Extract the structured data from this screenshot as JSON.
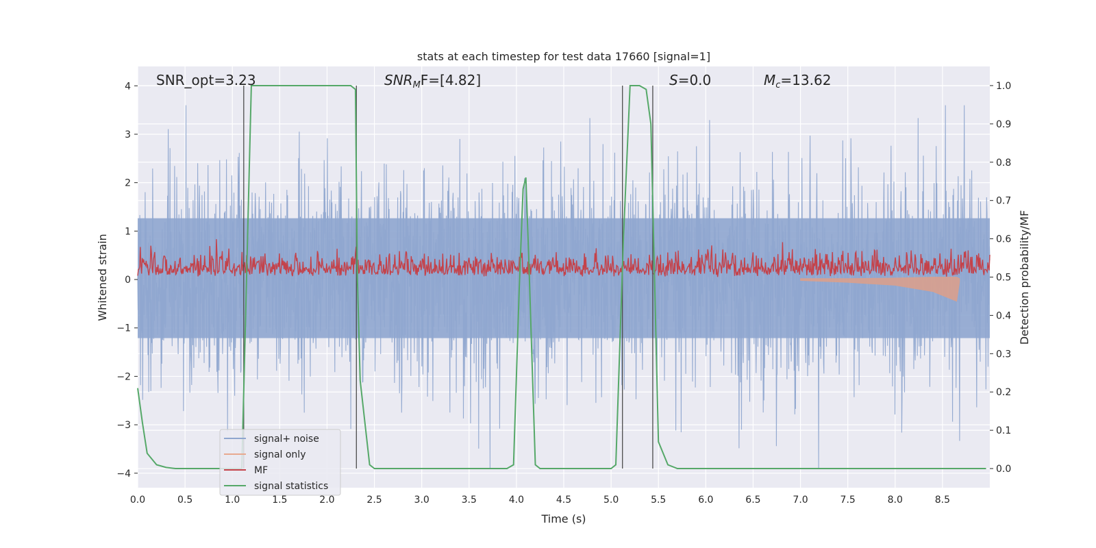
{
  "chart_data": {
    "type": "line",
    "title": "stats at each timestep for test data 17660 [signal=1]",
    "xlabel": "Time (s)",
    "ylabel_left": "Whitened strain",
    "ylabel_right": "Detection probability/MF",
    "xlim": [
      0.0,
      9.0
    ],
    "ylim_left": [
      -4.3,
      4.4
    ],
    "ylim_right": [
      -0.05,
      1.05
    ],
    "x_ticks": [
      "0.0",
      "0.5",
      "1.0",
      "1.5",
      "2.0",
      "2.5",
      "3.0",
      "3.5",
      "4.0",
      "4.5",
      "5.0",
      "5.5",
      "6.0",
      "6.5",
      "7.0",
      "7.5",
      "8.0",
      "8.5"
    ],
    "y_ticks_left": [
      "4",
      "3",
      "2",
      "1",
      "0",
      "−1",
      "−2",
      "−3",
      "−4"
    ],
    "y_ticks_right": [
      "1.0",
      "0.9",
      "0.8",
      "0.7",
      "0.6",
      "0.5",
      "0.4",
      "0.3",
      "0.2",
      "0.1",
      "0.0"
    ],
    "grid": true,
    "legend_position": "lower-left",
    "annotations": {
      "snr_opt": "SNR_opt=3.23",
      "snr_mf_base": "SNR",
      "snr_mf_sub": "M",
      "snr_mf_rest": "F=[4.82]",
      "s_base": "S",
      "s_rest": "=0.0",
      "mc_base": "M",
      "mc_sub": "c",
      "mc_rest": "=13.62"
    },
    "series": [
      {
        "name": "signal+ noise",
        "color": "#8fa6cf",
        "axis": "left",
        "envelope_typical": [
          -2.2,
          2.3
        ],
        "envelope_extreme": [
          -3.9,
          3.6
        ]
      },
      {
        "name": "signal only",
        "color": "#d9a08d",
        "axis": "left",
        "x": [
          7.0,
          7.5,
          8.0,
          8.4,
          8.65,
          8.68
        ],
        "y_low": [
          -0.02,
          -0.06,
          -0.12,
          -0.25,
          -0.45,
          -0.05
        ],
        "y_high": [
          0.02,
          0.02,
          0.03,
          0.05,
          0.05,
          0.02
        ]
      },
      {
        "name": "MF",
        "color": "#c4424a",
        "axis": "right",
        "baseline": 0.5,
        "typical_peak": 0.56,
        "max_peak": 0.6
      },
      {
        "name": "signal statistics",
        "color": "#55a868",
        "axis": "right",
        "x": [
          0.0,
          0.05,
          0.1,
          0.2,
          0.3,
          0.4,
          1.0,
          1.1,
          1.13,
          1.2,
          1.3,
          2.25,
          2.3,
          2.32,
          2.35,
          2.45,
          2.5,
          3.9,
          3.97,
          4.03,
          4.07,
          4.1,
          4.13,
          4.2,
          4.25,
          5.0,
          5.05,
          5.13,
          5.2,
          5.3,
          5.37,
          5.42,
          5.5,
          5.6,
          5.7,
          8.96
        ],
        "y": [
          0.21,
          0.12,
          0.04,
          0.01,
          0.003,
          0.0,
          0.0,
          0.0,
          0.3,
          1.0,
          1.0,
          1.0,
          0.99,
          0.5,
          0.23,
          0.01,
          0.0,
          0.0,
          0.01,
          0.47,
          0.73,
          0.76,
          0.55,
          0.01,
          0.0,
          0.0,
          0.01,
          0.6,
          1.0,
          1.0,
          0.99,
          0.9,
          0.07,
          0.01,
          0.0,
          0.0
        ]
      }
    ],
    "vertical_lines_x": [
      1.12,
      2.31,
      5.12,
      5.44
    ]
  },
  "colors": {
    "plot_background": "#eaeaf2",
    "grid": "#ffffff",
    "vertical_lines": "#4c4c4c"
  }
}
